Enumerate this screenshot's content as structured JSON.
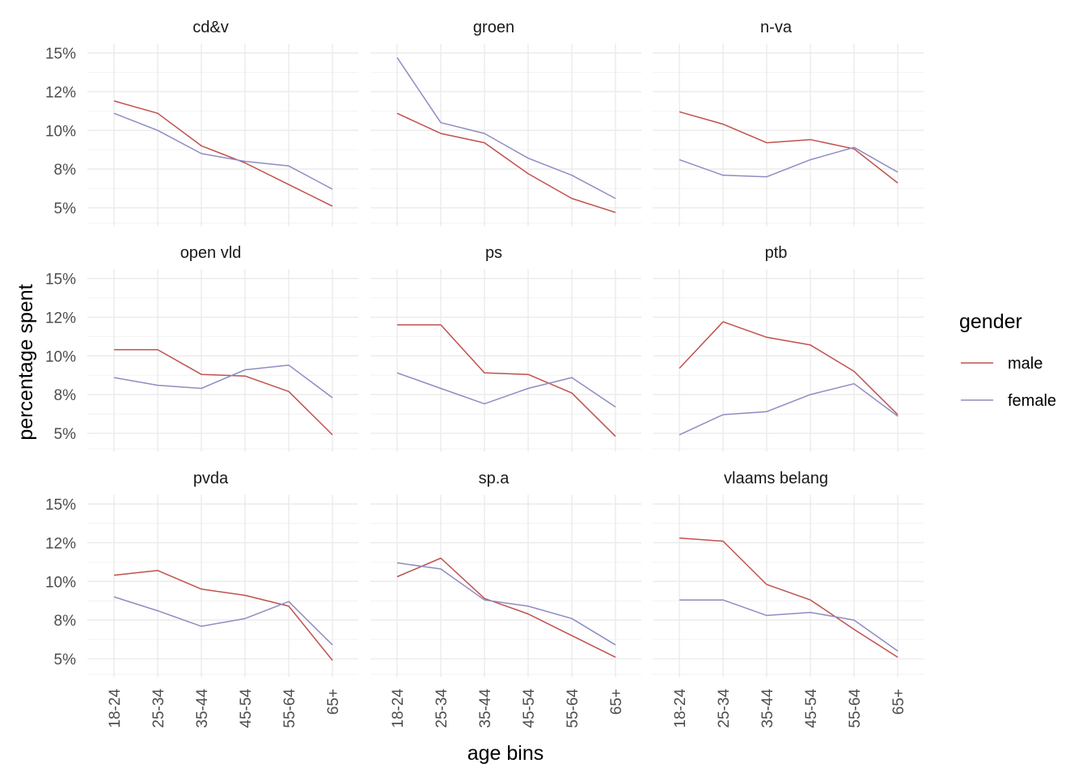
{
  "chart_data": {
    "type": "line",
    "xlabel": "age bins",
    "ylabel": "percentage spent",
    "categories": [
      "18-24",
      "25-34",
      "35-44",
      "45-54",
      "55-64",
      "65+"
    ],
    "y_ticks": [
      5,
      7.5,
      10,
      12.5,
      15
    ],
    "y_tick_labels": [
      "5%",
      "8%",
      "10%",
      "12%",
      "15%"
    ],
    "ylim": [
      3.8,
      15.6
    ],
    "grid": true,
    "legend": {
      "title": "gender",
      "position": "right",
      "entries": [
        {
          "label": "male",
          "color": "#c0504d"
        },
        {
          "label": "female",
          "color": "#8e8cc2"
        }
      ]
    },
    "facets": [
      {
        "title": "cd&v",
        "series": [
          {
            "name": "male",
            "values": [
              11.9,
              11.1,
              9.0,
              7.9,
              6.5,
              5.1
            ]
          },
          {
            "name": "female",
            "values": [
              11.1,
              10.0,
              8.5,
              8.0,
              7.7,
              6.2
            ]
          }
        ]
      },
      {
        "title": "groen",
        "series": [
          {
            "name": "male",
            "values": [
              11.1,
              9.8,
              9.2,
              7.2,
              5.6,
              4.7
            ]
          },
          {
            "name": "female",
            "values": [
              14.7,
              10.5,
              9.8,
              8.2,
              7.1,
              5.6
            ]
          }
        ]
      },
      {
        "title": "n-va",
        "series": [
          {
            "name": "male",
            "values": [
              11.2,
              10.4,
              9.2,
              9.4,
              8.8,
              6.6
            ]
          },
          {
            "name": "female",
            "values": [
              8.1,
              7.1,
              7.0,
              8.1,
              8.9,
              7.3
            ]
          }
        ]
      },
      {
        "title": "open vld",
        "series": [
          {
            "name": "male",
            "values": [
              10.4,
              10.4,
              8.8,
              8.7,
              7.7,
              4.9
            ]
          },
          {
            "name": "female",
            "values": [
              8.6,
              8.1,
              7.9,
              9.1,
              9.4,
              7.3
            ]
          }
        ]
      },
      {
        "title": "ps",
        "series": [
          {
            "name": "male",
            "values": [
              12.0,
              12.0,
              8.9,
              8.8,
              7.6,
              4.8
            ]
          },
          {
            "name": "female",
            "values": [
              8.9,
              7.9,
              6.9,
              7.9,
              8.6,
              6.7
            ]
          }
        ]
      },
      {
        "title": "ptb",
        "series": [
          {
            "name": "male",
            "values": [
              9.2,
              12.2,
              11.2,
              10.7,
              9.0,
              6.2
            ]
          },
          {
            "name": "female",
            "values": [
              4.9,
              6.2,
              6.4,
              7.5,
              8.2,
              6.1
            ]
          }
        ]
      },
      {
        "title": "pvda",
        "series": [
          {
            "name": "male",
            "values": [
              10.4,
              10.7,
              9.5,
              9.1,
              8.4,
              4.9
            ]
          },
          {
            "name": "female",
            "values": [
              9.0,
              8.1,
              7.1,
              7.6,
              8.7,
              5.9
            ]
          }
        ]
      },
      {
        "title": "sp.a",
        "series": [
          {
            "name": "male",
            "values": [
              10.3,
              11.5,
              8.9,
              7.9,
              6.5,
              5.1
            ]
          },
          {
            "name": "female",
            "values": [
              11.2,
              10.8,
              8.8,
              8.4,
              7.6,
              5.9
            ]
          }
        ]
      },
      {
        "title": "vlaams belang",
        "series": [
          {
            "name": "male",
            "values": [
              12.8,
              12.6,
              9.8,
              8.8,
              6.9,
              5.1
            ]
          },
          {
            "name": "female",
            "values": [
              8.8,
              8.8,
              7.8,
              8.0,
              7.5,
              5.5
            ]
          }
        ]
      }
    ]
  }
}
